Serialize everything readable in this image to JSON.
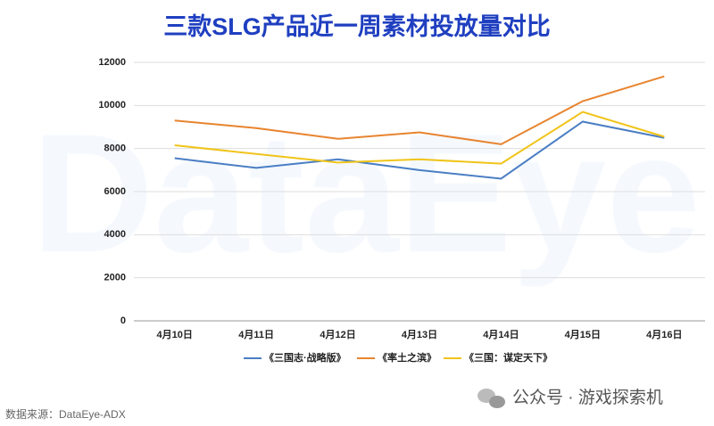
{
  "chart_data": {
    "type": "line",
    "title": "三款SLG产品近一周素材投放量对比",
    "categories": [
      "4月10日",
      "4月11日",
      "4月12日",
      "4月13日",
      "4月14日",
      "4月15日",
      "4月16日"
    ],
    "series": [
      {
        "name": "《三国志·战略版》",
        "color": "#4a7ec4",
        "values": [
          7550,
          7100,
          7500,
          7000,
          6600,
          9250,
          8500
        ]
      },
      {
        "name": "《率土之滨》",
        "color": "#e8842f",
        "values": [
          9300,
          8950,
          8450,
          8750,
          8200,
          10200,
          11350
        ]
      },
      {
        "name": "《三国：谋定天下》",
        "color": "#f0c419",
        "values": [
          8150,
          7750,
          7350,
          7500,
          7300,
          9700,
          8550
        ]
      }
    ],
    "ylim": [
      0,
      12000
    ],
    "yticks": [
      0,
      2000,
      4000,
      6000,
      8000,
      10000,
      12000
    ],
    "grid": true,
    "watermark": "DataEye",
    "source": "数据来源：DataEye-ADX",
    "account": "公众号 · 游戏探索机"
  }
}
